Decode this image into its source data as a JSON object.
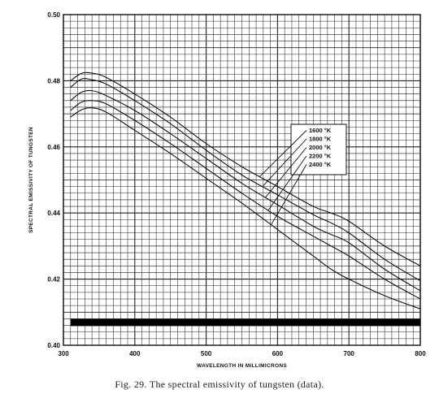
{
  "caption": "Fig. 29.  The spectral emissivity of tungsten (data).",
  "chart_data": {
    "type": "line",
    "xlabel": "WAVELENGTH IN MILLIMICRONS",
    "ylabel": "SPECTRAL EMISSIVITY OF TUNGSTEN",
    "xlim": [
      300,
      800
    ],
    "ylim": [
      0.4,
      0.5
    ],
    "x_ticks": [
      "300",
      "400",
      "500",
      "600",
      "700",
      "800"
    ],
    "y_ticks": [
      "0.40",
      "0.42",
      "0.44",
      "0.46",
      "0.48",
      "0.50"
    ],
    "grid": true,
    "legend": {
      "position": "right",
      "entries": [
        "1600 °K",
        "1800 °K",
        "2000 °K",
        "2200 °K",
        "2400 °K"
      ]
    },
    "x": [
      310,
      325,
      340,
      360,
      400,
      450,
      500,
      550,
      600,
      650,
      675,
      700,
      750,
      800
    ],
    "series": [
      {
        "name": "1600 °K",
        "values": [
          0.48,
          0.4822,
          0.4823,
          0.481,
          0.476,
          0.469,
          0.461,
          0.454,
          0.448,
          0.442,
          0.44,
          0.4375,
          0.43,
          0.424
        ]
      },
      {
        "name": "1800 °K",
        "values": [
          0.478,
          0.4805,
          0.4803,
          0.479,
          0.474,
          0.467,
          0.459,
          0.4515,
          0.4455,
          0.4395,
          0.437,
          0.434,
          0.426,
          0.4195
        ]
      },
      {
        "name": "2000 °K",
        "values": [
          0.474,
          0.4765,
          0.477,
          0.4755,
          0.471,
          0.464,
          0.4565,
          0.449,
          0.4425,
          0.436,
          0.4335,
          0.431,
          0.423,
          0.4165
        ]
      },
      {
        "name": "2200 °K",
        "values": [
          0.471,
          0.4735,
          0.474,
          0.473,
          0.468,
          0.461,
          0.4535,
          0.446,
          0.439,
          0.433,
          0.43,
          0.427,
          0.42,
          0.414
        ]
      },
      {
        "name": "2400 °K",
        "values": [
          0.469,
          0.4712,
          0.4718,
          0.4705,
          0.465,
          0.458,
          0.4505,
          0.443,
          0.435,
          0.427,
          0.423,
          0.42,
          0.415,
          0.411
        ]
      }
    ]
  }
}
